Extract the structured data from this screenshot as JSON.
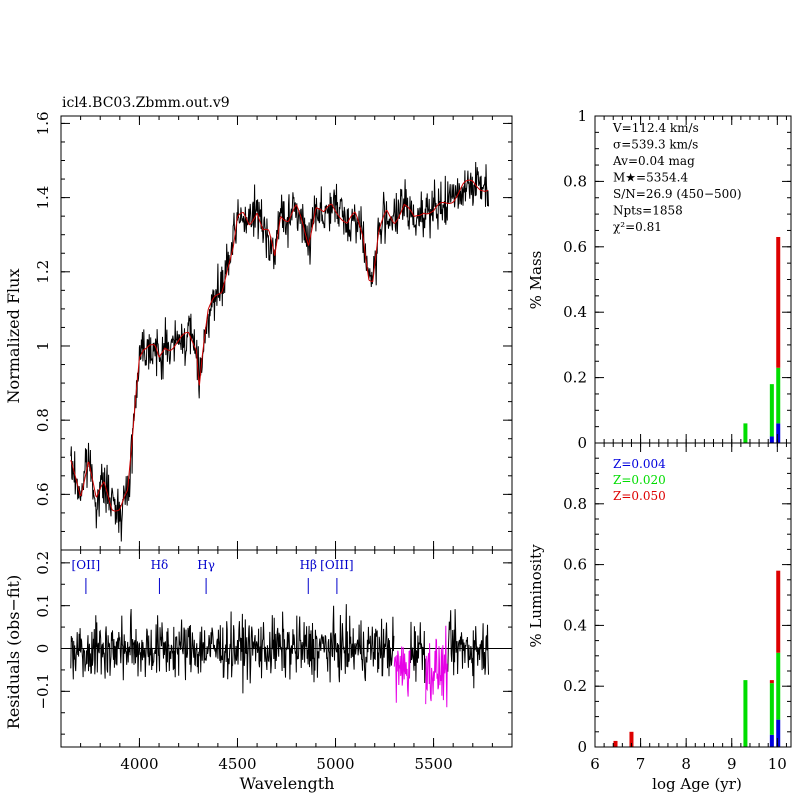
{
  "chart_data": {
    "type": "line",
    "title": "icl4.BC03.Zbmm.out.v9",
    "colors": {
      "observed": "#000000",
      "model": "#cc0000",
      "masked": "#e600e6",
      "line_label": "#0000cc",
      "z1": "#0000dd",
      "z2": "#00dd00",
      "z3": "#dd0000"
    },
    "spectrum": {
      "xlabel": "Wavelength",
      "ylabel": "Normalized Flux",
      "xlim": [
        3600,
        5900
      ],
      "ylim": [
        0.45,
        1.62
      ],
      "xticks": [
        4000,
        4500,
        5000,
        5500
      ],
      "xtick_labels": [
        "4000",
        "4500",
        "5000",
        "5500"
      ],
      "yticks": [
        0.6,
        0.8,
        1.0,
        1.2,
        1.4,
        1.6
      ],
      "ytick_labels": [
        "0.6",
        "0.8",
        "1",
        "1.2",
        "1.4",
        "1.6"
      ],
      "model_points": [
        [
          3650,
          0.68
        ],
        [
          3700,
          0.6
        ],
        [
          3740,
          0.7
        ],
        [
          3780,
          0.58
        ],
        [
          3820,
          0.63
        ],
        [
          3860,
          0.57
        ],
        [
          3900,
          0.56
        ],
        [
          3940,
          0.6
        ],
        [
          3960,
          0.72
        ],
        [
          3980,
          0.86
        ],
        [
          4000,
          0.98
        ],
        [
          4020,
          1.0
        ],
        [
          4050,
          1.0
        ],
        [
          4080,
          0.99
        ],
        [
          4100,
          0.96
        ],
        [
          4130,
          1.0
        ],
        [
          4160,
          1.0
        ],
        [
          4200,
          1.01
        ],
        [
          4250,
          1.03
        ],
        [
          4290,
          1.0
        ],
        [
          4305,
          0.9
        ],
        [
          4320,
          0.98
        ],
        [
          4350,
          1.09
        ],
        [
          4380,
          1.12
        ],
        [
          4420,
          1.15
        ],
        [
          4450,
          1.22
        ],
        [
          4480,
          1.27
        ],
        [
          4500,
          1.34
        ],
        [
          4530,
          1.35
        ],
        [
          4560,
          1.33
        ],
        [
          4600,
          1.37
        ],
        [
          4630,
          1.31
        ],
        [
          4660,
          1.3
        ],
        [
          4690,
          1.24
        ],
        [
          4720,
          1.36
        ],
        [
          4760,
          1.34
        ],
        [
          4800,
          1.37
        ],
        [
          4830,
          1.33
        ],
        [
          4862,
          1.28
        ],
        [
          4900,
          1.38
        ],
        [
          4940,
          1.35
        ],
        [
          4980,
          1.38
        ],
        [
          5020,
          1.36
        ],
        [
          5060,
          1.33
        ],
        [
          5100,
          1.35
        ],
        [
          5140,
          1.3
        ],
        [
          5170,
          1.19
        ],
        [
          5190,
          1.18
        ],
        [
          5220,
          1.3
        ],
        [
          5260,
          1.36
        ],
        [
          5300,
          1.34
        ],
        [
          5350,
          1.38
        ],
        [
          5400,
          1.34
        ],
        [
          5450,
          1.37
        ],
        [
          5500,
          1.36
        ],
        [
          5550,
          1.38
        ],
        [
          5600,
          1.4
        ],
        [
          5650,
          1.43
        ],
        [
          5700,
          1.44
        ],
        [
          5750,
          1.43
        ],
        [
          5780,
          1.42
        ]
      ],
      "observed_noise": 0.045
    },
    "residuals": {
      "xlabel": "Wavelength",
      "ylabel": "Residuals (obs−fit)",
      "xlim": [
        3600,
        5900
      ],
      "ylim": [
        -0.23,
        0.23
      ],
      "yticks": [
        -0.1,
        0,
        0.1,
        0.2
      ],
      "ytick_labels": [
        "−0.1",
        "0",
        "0.1",
        "0.2"
      ],
      "noise": 0.05,
      "masked_ranges": [
        [
          5300,
          5380
        ],
        [
          5460,
          5570
        ]
      ],
      "line_markers": [
        {
          "label": "[OII]",
          "wavelength": 3727
        },
        {
          "label": "Hδ",
          "wavelength": 4102
        },
        {
          "label": "Hγ",
          "wavelength": 4340
        },
        {
          "label": "Hβ",
          "wavelength": 4861
        },
        {
          "label": "[OIII]",
          "wavelength": 5007
        }
      ]
    },
    "mass": {
      "ylabel": "% Mass",
      "xlim": [
        6,
        10.3
      ],
      "ylim": [
        0,
        1
      ],
      "yticks": [
        0,
        0.2,
        0.4,
        0.6,
        0.8,
        1
      ],
      "ytick_labels": [
        "0",
        "0.2",
        "0.4",
        "0.6",
        "0.8",
        "1"
      ],
      "series": [
        {
          "name": "Z=0.004",
          "bars": [
            [
              9.88,
              0.02
            ],
            [
              10.02,
              0.06
            ]
          ]
        },
        {
          "name": "Z=0.020",
          "bars": [
            [
              9.3,
              0.06
            ],
            [
              9.88,
              0.16
            ],
            [
              10.02,
              0.17
            ]
          ]
        },
        {
          "name": "Z=0.050",
          "bars": [
            [
              10.02,
              0.4
            ]
          ]
        }
      ],
      "stats": [
        "V=112.4 km/s",
        "σ=539.3 km/s",
        "Av=0.04 mag",
        "M★=5354.4",
        "S/N=26.9 (450−500)",
        "Npts=1858",
        "χ²=0.81"
      ]
    },
    "luminosity": {
      "xlabel": "log Age (yr)",
      "ylabel": "% Luminosity",
      "xlim": [
        6,
        10.3
      ],
      "ylim": [
        0,
        1
      ],
      "xticks": [
        6,
        7,
        8,
        9,
        10
      ],
      "xtick_labels": [
        "6",
        "7",
        "8",
        "9",
        "10"
      ],
      "yticks": [
        0,
        0.2,
        0.4,
        0.6,
        0.8
      ],
      "ytick_labels": [
        "0",
        "0.2",
        "0.4",
        "0.6",
        "0.8"
      ],
      "series": [
        {
          "name": "Z=0.004",
          "bars": [
            [
              9.88,
              0.04
            ],
            [
              10.02,
              0.09
            ]
          ]
        },
        {
          "name": "Z=0.020",
          "bars": [
            [
              9.3,
              0.22
            ],
            [
              9.88,
              0.17
            ],
            [
              10.02,
              0.22
            ]
          ]
        },
        {
          "name": "Z=0.050",
          "bars": [
            [
              6.45,
              0.02
            ],
            [
              6.8,
              0.05
            ],
            [
              9.88,
              0.01
            ],
            [
              10.02,
              0.27
            ]
          ]
        }
      ],
      "legend": [
        "Z=0.004",
        "Z=0.020",
        "Z=0.050"
      ]
    }
  }
}
